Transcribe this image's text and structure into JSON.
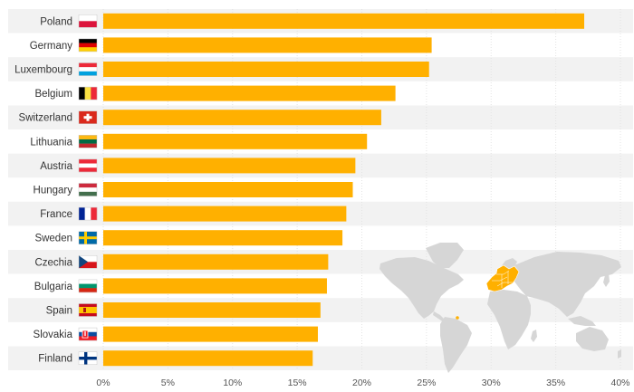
{
  "colors": {
    "bar": "#ffb000",
    "row_band": "#f2f2f2",
    "map_land": "#d6d6d6",
    "map_highlight": "#ffb000"
  },
  "map_region_icon": "world-map-europe-highlight",
  "chart_data": {
    "type": "bar",
    "orientation": "horizontal",
    "title": "",
    "xlabel": "",
    "ylabel": "",
    "xlim": [
      0,
      40
    ],
    "ticks": [
      0,
      5,
      10,
      15,
      20,
      25,
      30,
      35,
      40
    ],
    "tick_labels": [
      "0%",
      "5%",
      "10%",
      "15%",
      "20%",
      "25%",
      "30%",
      "35%",
      "40%"
    ],
    "grid": true,
    "categories": [
      "Poland",
      "Germany",
      "Luxembourg",
      "Belgium",
      "Switzerland",
      "Lithuania",
      "Austria",
      "Hungary",
      "France",
      "Sweden",
      "Czechia",
      "Bulgaria",
      "Spain",
      "Slovakia",
      "Finland"
    ],
    "flags": [
      "flag-poland",
      "flag-germany",
      "flag-luxembourg",
      "flag-belgium",
      "flag-switzerland",
      "flag-lithuania",
      "flag-austria",
      "flag-hungary",
      "flag-france",
      "flag-sweden",
      "flag-czechia",
      "flag-bulgaria",
      "flag-spain",
      "flag-slovakia",
      "flag-finland"
    ],
    "values": [
      37.2,
      25.4,
      25.2,
      22.6,
      21.5,
      20.4,
      19.5,
      19.3,
      18.8,
      18.5,
      17.4,
      17.3,
      16.8,
      16.6,
      16.2
    ]
  }
}
